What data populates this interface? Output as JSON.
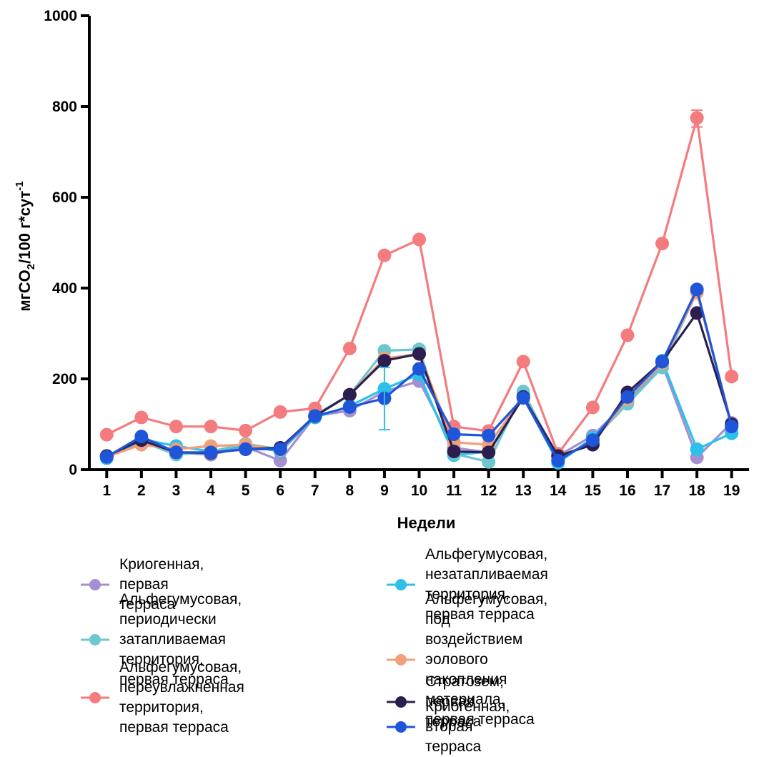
{
  "chart_data": {
    "type": "line",
    "xlabel": "Недели",
    "ylabel": {
      "main": "мгCO",
      "sub": "2",
      "mid": "/100 г*сут",
      "sup": "-1"
    },
    "x": [
      1,
      2,
      3,
      4,
      5,
      6,
      7,
      8,
      9,
      10,
      11,
      12,
      13,
      14,
      15,
      16,
      17,
      18,
      19
    ],
    "xlim": [
      0.5,
      19.5
    ],
    "ylim": [
      0,
      1000
    ],
    "yticks": [
      0,
      200,
      400,
      600,
      800,
      1000
    ],
    "grid": false,
    "legend_position": "bottom",
    "series": [
      {
        "name": "Криогенная, первая терраса",
        "color": "#a48fd0",
        "values": [
          30,
          60,
          37,
          33,
          50,
          20,
          118,
          130,
          172,
          195,
          48,
          38,
          165,
          30,
          75,
          150,
          233,
          27,
          103
        ]
      },
      {
        "name": "Альфегумусовая, незатапливаемая территория, первая терраса",
        "color": "#2cc0ea",
        "values": [
          25,
          67,
          52,
          40,
          53,
          40,
          115,
          140,
          178,
          210,
          32,
          40,
          160,
          15,
          70,
          150,
          240,
          45,
          80
        ]
      },
      {
        "name": "Альфегумусовая, периодически затапливаемая территория, первая терраса",
        "color": "#6cc7cf",
        "values": [
          30,
          62,
          33,
          40,
          57,
          45,
          120,
          165,
          262,
          265,
          35,
          17,
          172,
          22,
          65,
          145,
          225,
          392,
          95
        ]
      },
      {
        "name": "Альфегумусовая, под воздействием эолового накопления материала, первая терраса",
        "color": "#f2a07a",
        "values": [
          28,
          55,
          45,
          52,
          55,
          43,
          118,
          165,
          245,
          255,
          60,
          55,
          160,
          27,
          60,
          155,
          235,
          390,
          100
        ]
      },
      {
        "name": "Альфегумусовая, переувлажненная территория, первая терраса",
        "color": "#f47b7e",
        "values": [
          77,
          115,
          95,
          95,
          86,
          127,
          135,
          267,
          472,
          507,
          95,
          85,
          238,
          35,
          137,
          296,
          498,
          775,
          205
        ]
      },
      {
        "name": "Стратозем, первая терраса",
        "color": "#2c1f4f",
        "values": [
          30,
          65,
          38,
          37,
          45,
          48,
          118,
          165,
          240,
          255,
          40,
          38,
          160,
          30,
          55,
          170,
          238,
          345,
          100
        ]
      },
      {
        "name": "Криогенная, вторая терраса",
        "color": "#1f55d8",
        "values": [
          28,
          73,
          38,
          38,
          45,
          45,
          118,
          138,
          157,
          222,
          78,
          75,
          158,
          20,
          65,
          160,
          238,
          397,
          95
        ]
      }
    ]
  },
  "legend": {
    "left_column": [
      0,
      2,
      4
    ],
    "right_column": [
      1,
      3,
      5,
      6
    ],
    "display": [
      "Криогенная, первая терраса",
      "Альфегумусовая,\nнезатапливаемая\nтерритория, первая терраса",
      "Альфегумусовая,\nпериодически затапливаемая\nтерритория, первая терраса",
      "Альфегумусовая, под\nвоздействием эолового накопления\nматериала, первая терраса",
      "Альфегумусовая,\nпереувлажненная\nтерритория, первая терраса",
      "Стратозем, первая терраса",
      "Криогенная, вторая терраса"
    ]
  }
}
